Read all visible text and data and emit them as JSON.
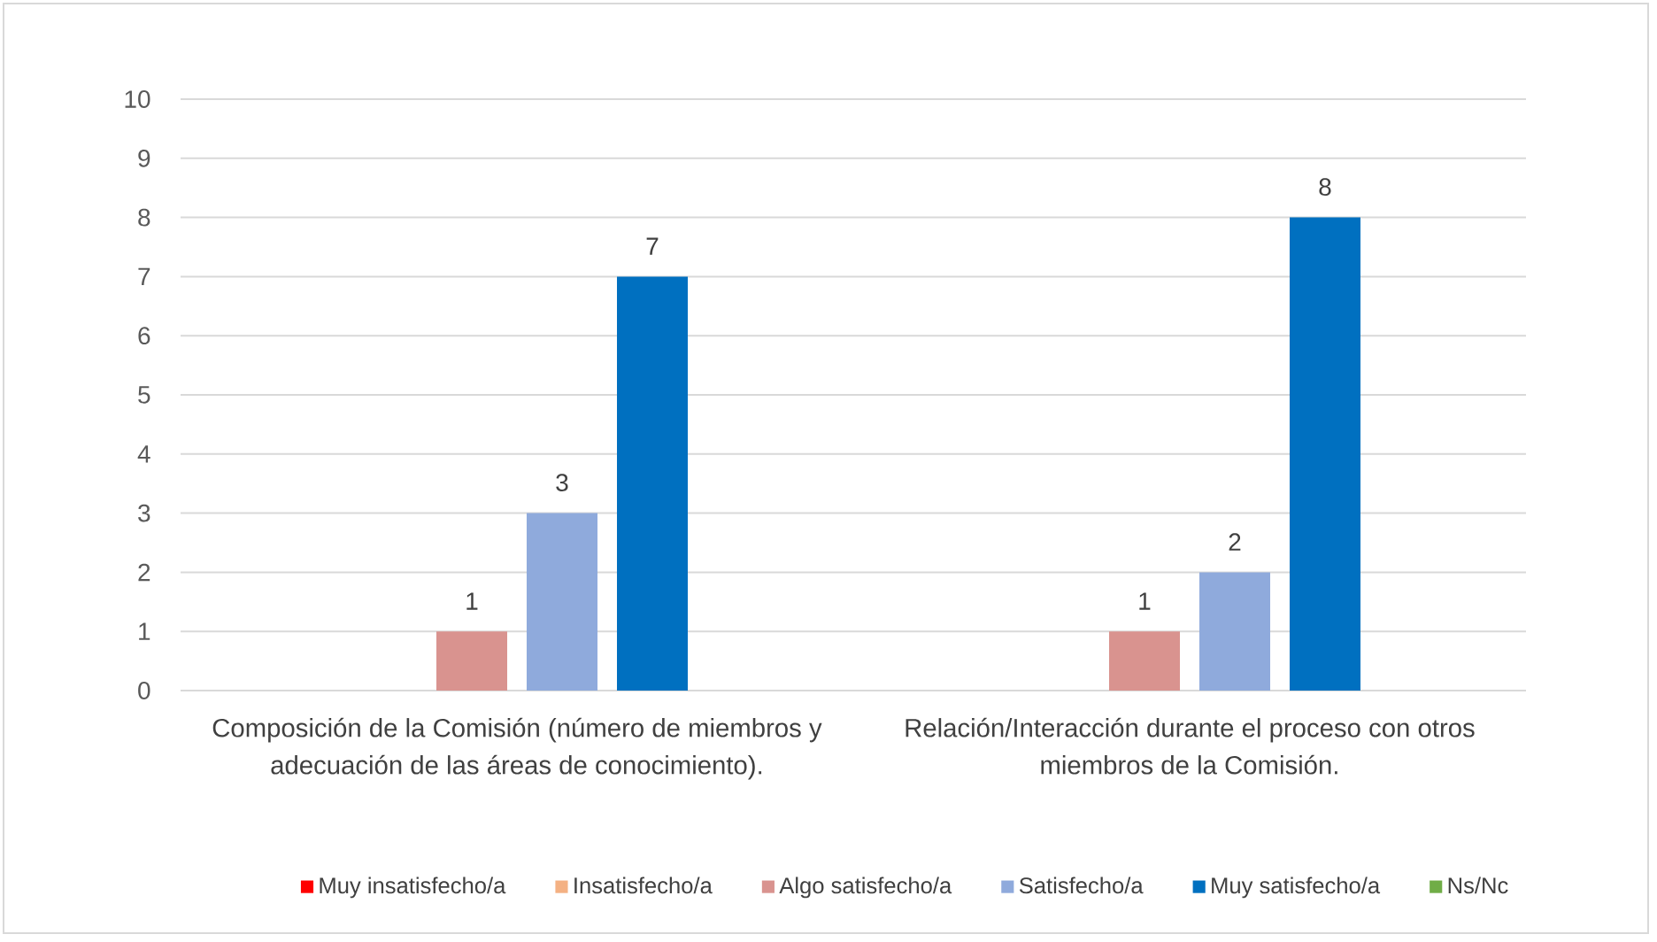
{
  "chart_data": {
    "type": "bar",
    "categories": [
      "Composición de la Comisión (número de miembros y adecuación de las áreas de conocimiento).",
      "Relación/Interacción durante el proceso con otros miembros de la Comisión."
    ],
    "series": [
      {
        "name": "Muy insatisfecho/a",
        "color": "#ff0000",
        "values": [
          null,
          null
        ]
      },
      {
        "name": "Insatisfecho/a",
        "color": "#f4b183",
        "values": [
          null,
          null
        ]
      },
      {
        "name": "Algo satisfecho/a",
        "color": "#d9938f",
        "values": [
          1,
          1
        ]
      },
      {
        "name": "Satisfecho/a",
        "color": "#8faadc",
        "values": [
          3,
          2
        ]
      },
      {
        "name": "Muy satisfecho/a",
        "color": "#0070c0",
        "values": [
          7,
          8
        ]
      },
      {
        "name": "Ns/Nc",
        "color": "#70ad47",
        "values": [
          null,
          null
        ]
      }
    ],
    "ylim": [
      0,
      10
    ],
    "yticks": [
      0,
      1,
      2,
      3,
      4,
      5,
      6,
      7,
      8,
      9,
      10
    ],
    "grid": "y",
    "legend": "bottom",
    "data_labels": true
  }
}
